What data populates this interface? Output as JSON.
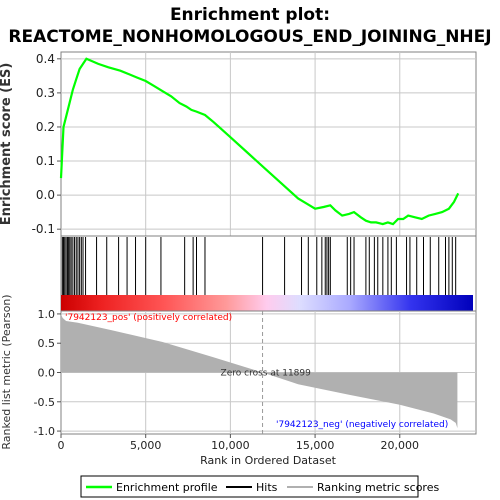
{
  "chart_data": {
    "type": "line",
    "title_line1": "Enrichment plot:",
    "title_line2": "REACTOME_NONHOMOLOGOUS_END_JOINING_NHEJ",
    "xlabel": "Rank in Ordered Dataset",
    "top_ylabel": "Enrichment score (ES)",
    "bottom_ylabel": "Ranked list metric (Pearson)",
    "xlim": [
      0,
      24500
    ],
    "x_ticks": [
      0,
      5000,
      10000,
      15000,
      20000
    ],
    "x_tick_labels": [
      "0",
      "5,000",
      "10,000",
      "15,000",
      "20,000"
    ],
    "es_ylim": [
      -0.12,
      0.42
    ],
    "es_ticks": [
      -0.1,
      0.0,
      0.1,
      0.2,
      0.3,
      0.4
    ],
    "es_tick_labels": [
      "-0.1",
      "0.0",
      "0.1",
      "0.2",
      "0.3",
      "0.4"
    ],
    "metric_ylim": [
      -1.05,
      1.05
    ],
    "metric_ticks": [
      -1.0,
      -0.5,
      0.0,
      0.5,
      1.0
    ],
    "metric_tick_labels": [
      "-1.0",
      "-0.5",
      "0.0",
      "0.5",
      "1.0"
    ],
    "enrichment_profile": {
      "x": [
        0,
        150,
        300,
        500,
        700,
        900,
        1100,
        1300,
        1500,
        2200,
        2800,
        3500,
        4000,
        4500,
        5000,
        5500,
        6000,
        6500,
        7000,
        7400,
        7700,
        8000,
        8500,
        9000,
        10000,
        11000,
        12000,
        13000,
        14000,
        14500,
        15000,
        15500,
        15900,
        16200,
        16600,
        17000,
        17300,
        17700,
        18000,
        18300,
        18600,
        19000,
        19300,
        19600,
        19900,
        20200,
        20500,
        20900,
        21300,
        21700,
        22100,
        22500,
        22900,
        23200,
        23450
      ],
      "y": [
        0.05,
        0.2,
        0.23,
        0.27,
        0.31,
        0.34,
        0.37,
        0.385,
        0.4,
        0.385,
        0.375,
        0.365,
        0.355,
        0.345,
        0.335,
        0.32,
        0.305,
        0.29,
        0.27,
        0.26,
        0.25,
        0.245,
        0.235,
        0.215,
        0.17,
        0.125,
        0.08,
        0.035,
        -0.01,
        -0.025,
        -0.04,
        -0.035,
        -0.03,
        -0.045,
        -0.06,
        -0.055,
        -0.05,
        -0.065,
        -0.075,
        -0.08,
        -0.08,
        -0.085,
        -0.08,
        -0.085,
        -0.07,
        -0.07,
        -0.06,
        -0.065,
        -0.07,
        -0.06,
        -0.055,
        -0.05,
        -0.04,
        -0.02,
        0.005
      ]
    },
    "hits": [
      80,
      150,
      220,
      300,
      380,
      450,
      520,
      600,
      700,
      800,
      900,
      1000,
      1100,
      1200,
      1300,
      1450,
      2100,
      2700,
      3400,
      3900,
      4400,
      5000,
      5900,
      7300,
      7800,
      8000,
      8500,
      11900,
      13200,
      14200,
      14600,
      15100,
      15400,
      15600,
      15700,
      15800,
      15900,
      16900,
      17100,
      17300,
      18000,
      18200,
      18500,
      18700,
      19000,
      19300,
      19500,
      19800,
      20400,
      20600,
      21000,
      21400,
      21800,
      22300,
      22700,
      22900,
      23100,
      23300
    ],
    "ranked_metric": {
      "x": [
        0,
        100,
        300,
        1000,
        3000,
        6000,
        9000,
        11899,
        14000,
        17000,
        20000,
        22000,
        23000,
        23300,
        23400
      ],
      "y": [
        0.99,
        0.93,
        0.88,
        0.85,
        0.72,
        0.52,
        0.26,
        0.0,
        -0.2,
        -0.38,
        -0.55,
        -0.7,
        -0.8,
        -0.86,
        -0.95
      ]
    },
    "zero_cross_rank": 11899,
    "zero_cross_label": "Zero cross at 11899",
    "pos_label": "'7942123_pos' (positively correlated)",
    "neg_label": "'7942123_neg' (negatively correlated)",
    "legend": [
      "Enrichment profile",
      "Hits",
      "Ranking metric scores"
    ],
    "legend_placement": "bottom",
    "colors": {
      "profile": "#00ff00",
      "hits": "#000000",
      "metric_fill": "#b0b0b0",
      "pos_text": "#ff0000",
      "neg_text": "#0000ff",
      "grid": "#c8c8c8"
    }
  }
}
